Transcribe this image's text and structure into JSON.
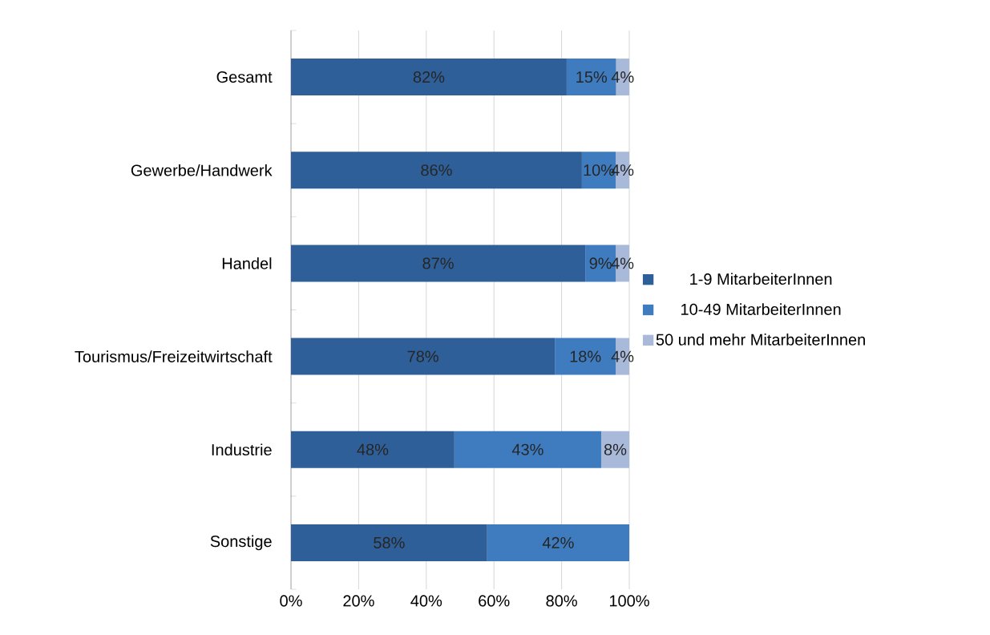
{
  "chart_data": {
    "type": "bar",
    "orientation": "horizontal",
    "stacked": true,
    "categories": [
      "Gesamt",
      "Gewerbe/Handwerk",
      "Handel",
      "Tourismus/Freizeitwirtschaft",
      "Industrie",
      "Sonstige"
    ],
    "series": [
      {
        "name": "1-9 MitarbeiterInnen",
        "color": "#2f5f98",
        "values": [
          81.5,
          86,
          87,
          78,
          48.3,
          58
        ],
        "value_labels": [
          "82%",
          "86%",
          "87%",
          "78%",
          "48%",
          "58%"
        ]
      },
      {
        "name": "10-49 MitarbeiterInnen",
        "color": "#3f7cbf",
        "values": [
          14.6,
          10,
          9,
          18,
          43.4,
          42
        ],
        "value_labels": [
          "15%",
          "10%",
          "9%",
          "18%",
          "43%",
          "42%"
        ]
      },
      {
        "name": "50 und mehr MitarbeiterInnen",
        "color": "#a9b9d9",
        "values": [
          3.9,
          4,
          4,
          4,
          8.3,
          null
        ],
        "value_labels": [
          "4%",
          "4%",
          "4%",
          "4%",
          "8%",
          null
        ]
      }
    ],
    "xlim": [
      0,
      100
    ],
    "xticks": [
      {
        "value": 0,
        "label": "0%"
      },
      {
        "value": 20,
        "label": "20%"
      },
      {
        "value": 40,
        "label": "40%"
      },
      {
        "value": 60,
        "label": "60%"
      },
      {
        "value": 80,
        "label": "80%"
      },
      {
        "value": 100,
        "label": "100%"
      }
    ],
    "grid": "x",
    "legend": "right"
  }
}
